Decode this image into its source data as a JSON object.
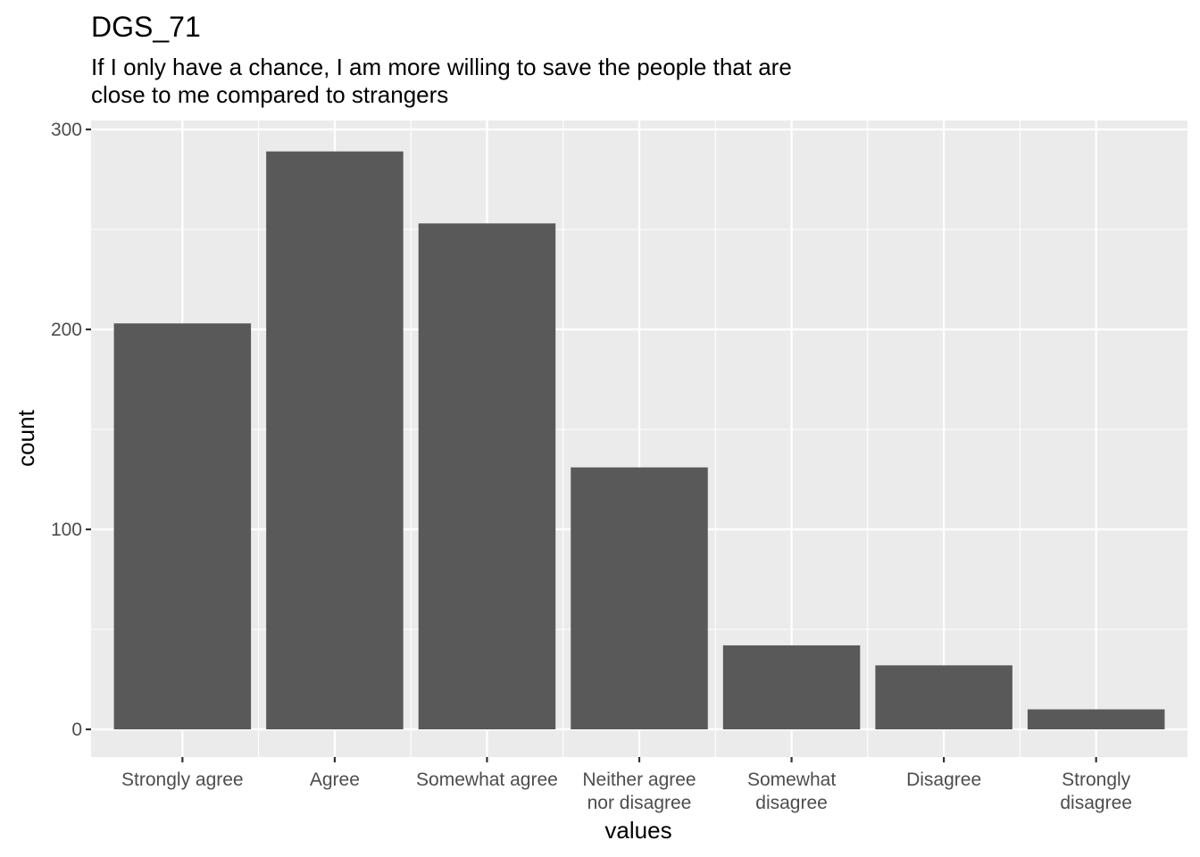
{
  "chart_data": {
    "type": "bar",
    "title": "DGS_71",
    "subtitle": [
      "If I only have a chance, I am more willing to save the people that are",
      "close to me compared to strangers"
    ],
    "xlabel": "values",
    "ylabel": "count",
    "categories": [
      [
        "Strongly agree"
      ],
      [
        "Agree"
      ],
      [
        "Somewhat agree"
      ],
      [
        "Neither agree",
        "nor disagree"
      ],
      [
        "Somewhat",
        "disagree"
      ],
      [
        "Disagree"
      ],
      [
        "Strongly",
        "disagree"
      ]
    ],
    "values": [
      203,
      289,
      253,
      131,
      42,
      32,
      10
    ],
    "ylim": [
      -13,
      304
    ],
    "yticks": [
      0,
      100,
      200,
      300
    ],
    "grid": true,
    "colors": {
      "bar": "#595959",
      "panel": "#ebebeb",
      "grid": "#ffffff"
    }
  }
}
